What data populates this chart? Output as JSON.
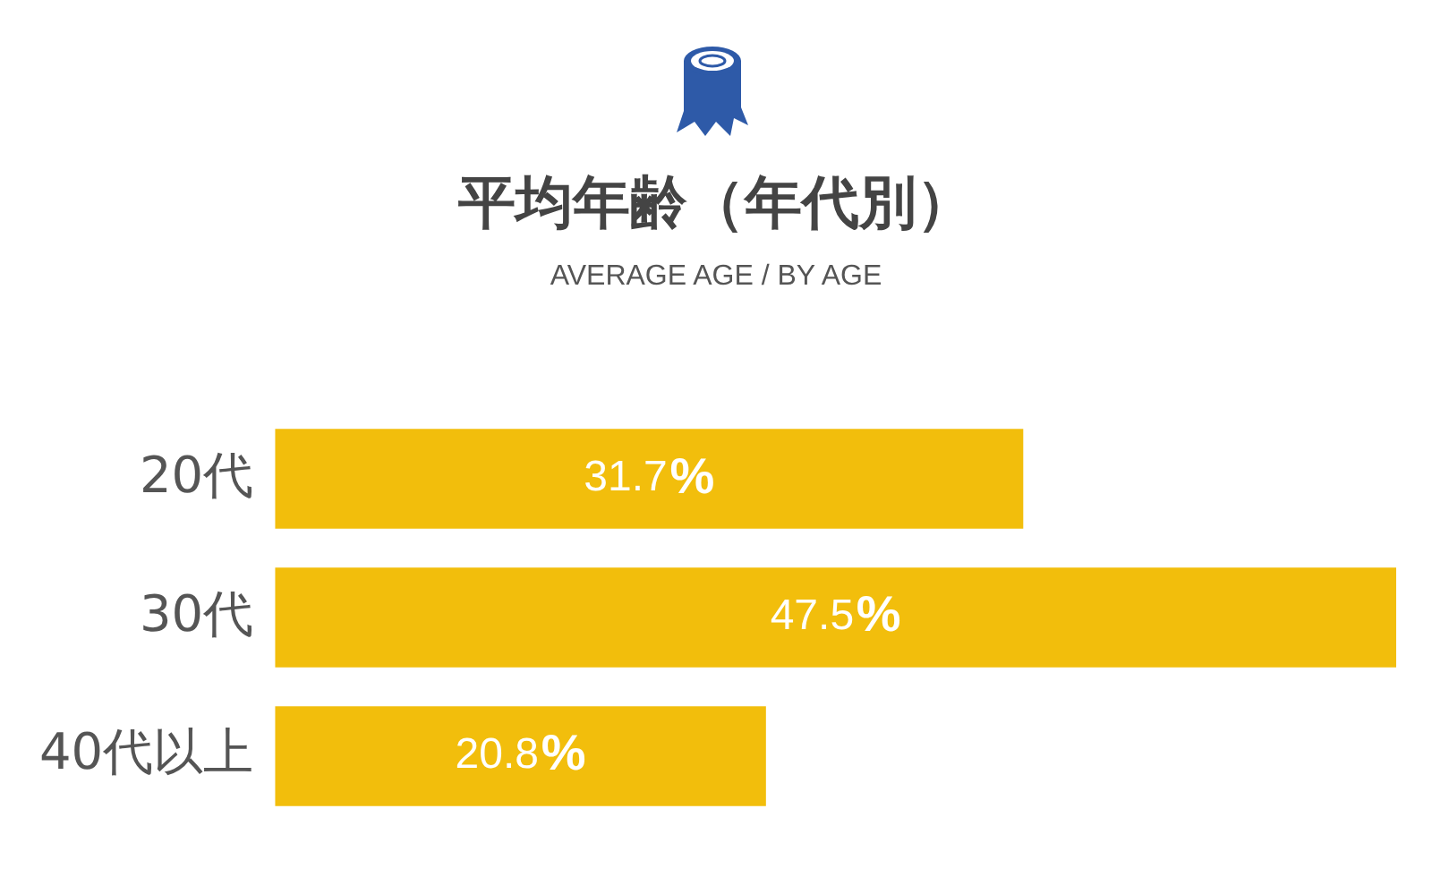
{
  "chart_data": {
    "type": "bar",
    "orientation": "horizontal",
    "title": "平均年齢（年代別）",
    "subtitle": "AVERAGE AGE / BY AGE",
    "categories": [
      "20代",
      "30代",
      "40代以上"
    ],
    "values": [
      31.7,
      47.5,
      20.8
    ],
    "value_labels": [
      "31.7%",
      "47.5%",
      "20.8%"
    ],
    "color": "#f2be0c",
    "grid": false,
    "legend": false
  }
}
